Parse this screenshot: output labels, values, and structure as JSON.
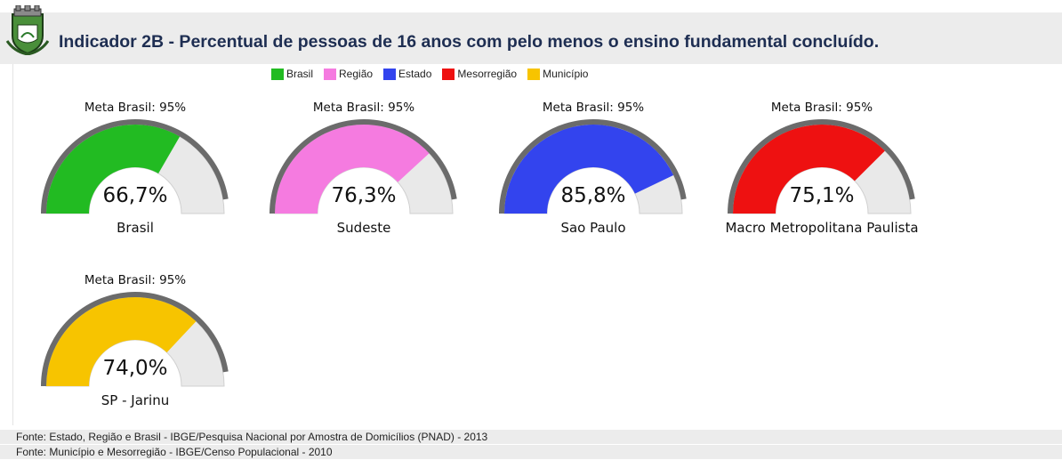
{
  "header": {
    "title": "Indicador 2B - Percentual de pessoas de 16 anos com pelo menos o ensino fundamental concluído."
  },
  "legend": [
    {
      "label": "Brasil",
      "color": "#22bb22"
    },
    {
      "label": "Região",
      "color": "#f57be0"
    },
    {
      "label": "Estado",
      "color": "#3344ee"
    },
    {
      "label": "Mesorregião",
      "color": "#ee1111"
    },
    {
      "label": "Município",
      "color": "#f7c400"
    }
  ],
  "chart_data": {
    "type": "gauge",
    "title": "Indicador 2B - Percentual de pessoas de 16 anos com pelo menos o ensino fundamental concluído.",
    "range": [
      0,
      100
    ],
    "target": 95,
    "gauges": [
      {
        "meta": "Meta Brasil: 95%",
        "value": 66.7,
        "value_label": "66,7%",
        "name": "Brasil",
        "color": "#22bb22"
      },
      {
        "meta": "Meta Brasil: 95%",
        "value": 76.3,
        "value_label": "76,3%",
        "name": "Sudeste",
        "color": "#f57be0"
      },
      {
        "meta": "Meta Brasil: 95%",
        "value": 85.8,
        "value_label": "85,8%",
        "name": "Sao Paulo",
        "color": "#3344ee"
      },
      {
        "meta": "Meta Brasil: 95%",
        "value": 75.1,
        "value_label": "75,1%",
        "name": "Macro Metropolitana Paulista",
        "color": "#ee1111"
      },
      {
        "meta": "Meta Brasil: 95%",
        "value": 74.0,
        "value_label": "74,0%",
        "name": "SP - Jarinu",
        "color": "#f7c400"
      }
    ]
  },
  "footer": {
    "sources": [
      "Fonte: Estado, Região e Brasil - IBGE/Pesquisa Nacional por Amostra de Domicílios (PNAD) - 2013",
      "Fonte: Município e Mesorregião - IBGE/Censo Populacional - 2010"
    ]
  }
}
